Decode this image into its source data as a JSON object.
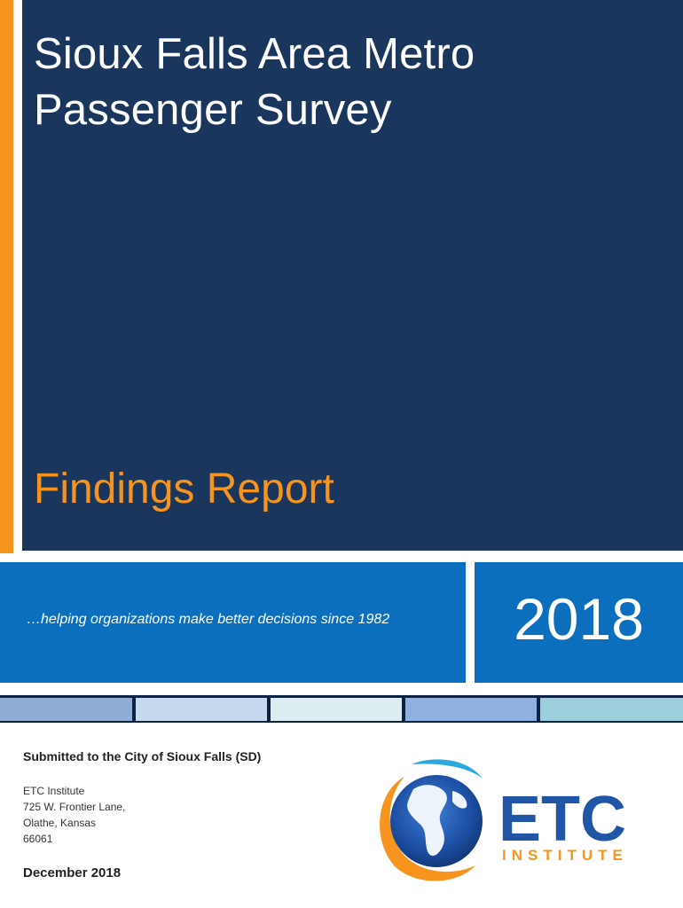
{
  "cover": {
    "title_line1": "Sioux Falls Area Metro",
    "title_line2": "Passenger Survey",
    "subtitle": "Findings Report",
    "tagline": "…helping organizations make better decisions since 1982",
    "year": "2018",
    "submitted_to": "Submitted to the City of Sioux Falls (SD)",
    "address": [
      "ETC Institute",
      "725 W. Frontier Lane,",
      "Olathe, Kansas",
      "66061"
    ],
    "date": "December 2018"
  },
  "logo": {
    "text_main": "ETC",
    "text_sub": "INSTITUTE",
    "icon": "globe-icon"
  },
  "colors": {
    "navy": "#1b365d",
    "orange": "#f7941d",
    "blue": "#0b6fbe",
    "logo_blue": "#2155a6"
  }
}
